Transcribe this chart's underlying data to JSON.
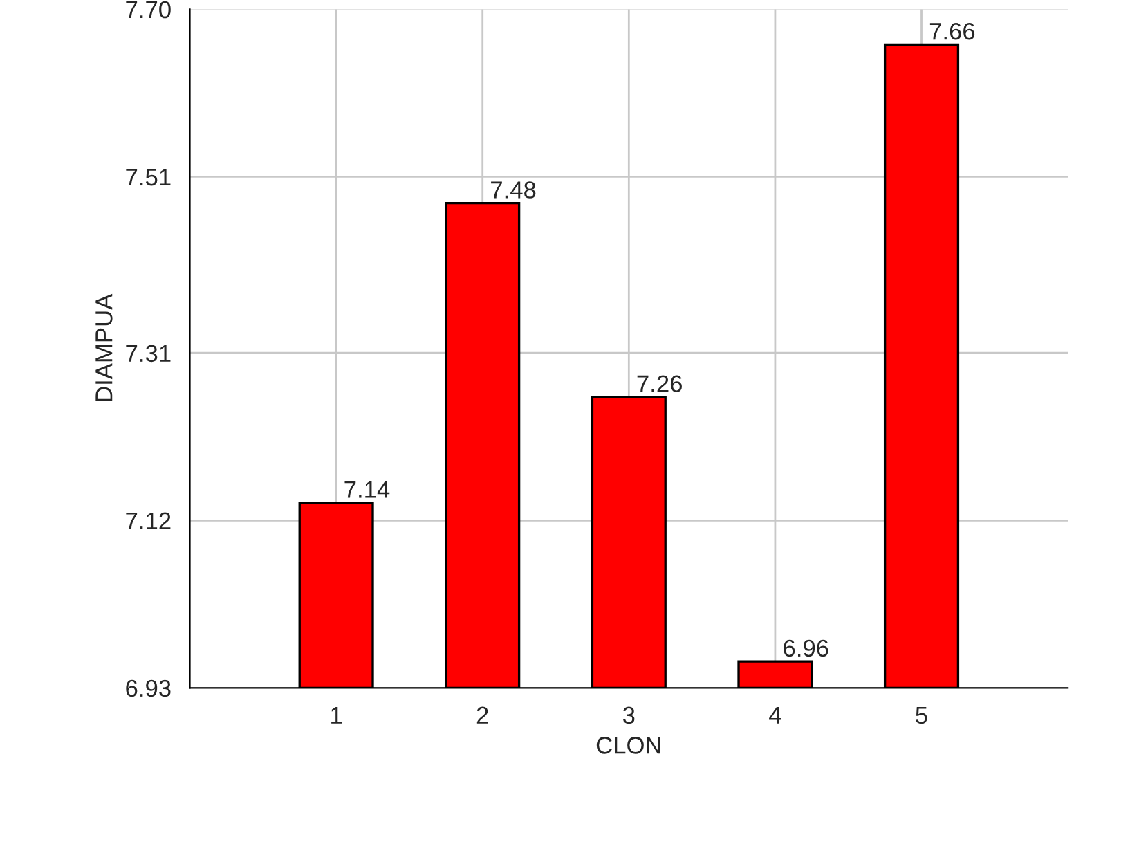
{
  "chart_data": {
    "type": "bar",
    "xlabel": "CLON",
    "ylabel": "DIAMPUA",
    "categories": [
      "1",
      "2",
      "3",
      "4",
      "5"
    ],
    "values": [
      7.14,
      7.48,
      7.26,
      6.96,
      7.66
    ],
    "color": "#ff0000",
    "ylim": [
      6.93,
      7.7
    ],
    "yticks": [
      6.93,
      7.12,
      7.31,
      7.51,
      {
        "value": 7.7,
        "label": "7.70"
      }
    ],
    "grid": true,
    "data_labels": true
  }
}
